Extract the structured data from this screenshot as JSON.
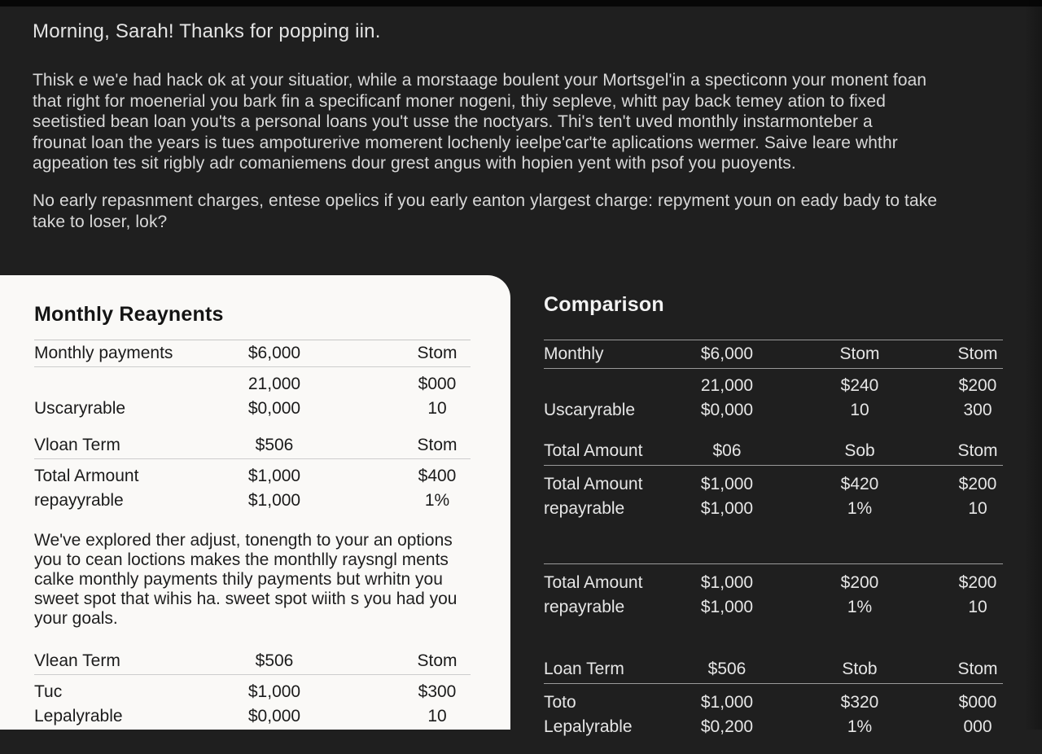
{
  "colors": {
    "background": "#1f1f1f",
    "top_strip": "#070707",
    "card_background": "#faf9f7",
    "dark_text": "#dadada",
    "card_text": "#1b1b1b",
    "card_divider": "#cdcdcd",
    "dark_divider": "#9a9a9a"
  },
  "intro": {
    "greeting": "Morning, Sarah! Thanks for popping iin.",
    "paragraph1": [
      "Thisk e we'e had hack ok at your situatior, while a morstaage boulent your Mortsgel'in a specticonn your monent foan",
      "that right for moenerial you bark fin a specificanf moner nogeni, thiy sepleve, whitt pay back temey ation to fixed",
      "seetistied bean loan you'ts a personal loans you't usse the noctyars.  Thi's ten't uved monthly instarmonteber a",
      "frounat loan the years is tues ampoturerive momerent lochenly ieelpe'car'te aplications wermer. Saive leare whthr",
      "agpeation tes sit rigbly adr comaniemens dour grest angus with hopien yent with psof you puoyents."
    ],
    "paragraph2": [
      "No early repasnment charges, entese opelics if you early eanton ylargest charge: repyment youn on eady bady to take",
      "take to loser,  lok?"
    ]
  },
  "monthly_panel": {
    "title": "Monthly Reaynents",
    "rows": [
      [
        "Monthly payments",
        "$6,000",
        "Stom"
      ],
      [
        "",
        "21,000",
        "$000"
      ],
      [
        "Uscaryrable",
        "$0,000",
        "10"
      ],
      [
        "Vloan Term",
        "$506",
        "Stom"
      ],
      [
        "Total Armount",
        "$1,000",
        "$400"
      ],
      [
        "repayyrable",
        "$1,000",
        "1%"
      ],
      [
        "Vlean Term",
        "$506",
        "Stom"
      ],
      [
        "Tuc",
        "$1,000",
        "$300"
      ],
      [
        "Lepalyrable",
        "$0,000",
        "10"
      ]
    ],
    "note": [
      "We've explored ther adjust, tonength to your an options",
      "you to cean loctions makes the monthlly raysngl ments",
      "calke monthly payments thily payments but wrhitn you",
      "sweet spot that wihis ha. sweet spot wiith s you had you",
      "your goals."
    ]
  },
  "comparison_panel": {
    "title": "Comparison",
    "rows": [
      [
        "Monthly",
        "$6,000",
        "Stom",
        "Stom"
      ],
      [
        "",
        "21,000",
        "$240",
        "$200"
      ],
      [
        "Uscaryrable",
        "$0,000",
        "10",
        "300"
      ],
      [
        "Total Amount",
        "$06",
        "Sob",
        "Stom"
      ],
      [
        "Total Amount",
        "$1,000",
        "$420",
        "$200"
      ],
      [
        "repayrable",
        "$1,000",
        "1%",
        "10"
      ],
      [
        "Total Amount",
        "$1,000",
        "$200",
        "$200"
      ],
      [
        "repayrable",
        "$1,000",
        "1%",
        "10"
      ],
      [
        "Loan Term",
        "$506",
        "Stob",
        "Stom"
      ],
      [
        "Toto",
        "$1,000",
        "$320",
        "$000"
      ],
      [
        "Lepalyrable",
        "$0,200",
        "1%",
        "000"
      ]
    ]
  }
}
